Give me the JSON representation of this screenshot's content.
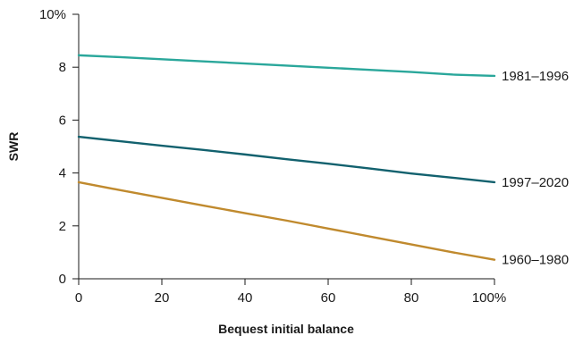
{
  "chart_data": {
    "type": "line",
    "title": "",
    "xlabel": "Bequest initial balance",
    "ylabel": "SWR",
    "x": [
      0,
      10,
      20,
      30,
      40,
      50,
      60,
      70,
      80,
      90,
      100
    ],
    "xlim": [
      0,
      100
    ],
    "ylim": [
      0,
      10
    ],
    "x_ticks": [
      0,
      20,
      40,
      60,
      80,
      100
    ],
    "x_tick_labels": [
      "0",
      "20",
      "40",
      "60",
      "80",
      "100%"
    ],
    "y_ticks": [
      0,
      2,
      4,
      6,
      8,
      10
    ],
    "y_tick_labels": [
      "0",
      "2",
      "4",
      "6",
      "8",
      "10%"
    ],
    "grid": false,
    "legend": "inline labels at line ends",
    "series": [
      {
        "name": "1981–1996",
        "color": "#2aa79b",
        "values": [
          8.45,
          8.38,
          8.3,
          8.22,
          8.14,
          8.06,
          7.98,
          7.9,
          7.82,
          7.72,
          7.67
        ]
      },
      {
        "name": "1997–2020",
        "color": "#12616e",
        "values": [
          5.37,
          5.2,
          5.03,
          4.87,
          4.7,
          4.52,
          4.35,
          4.17,
          3.98,
          3.82,
          3.65
        ]
      },
      {
        "name": "1960–1980",
        "color": "#c08a2e",
        "values": [
          3.65,
          3.35,
          3.06,
          2.77,
          2.48,
          2.2,
          1.9,
          1.6,
          1.3,
          1.0,
          0.72
        ]
      }
    ]
  }
}
